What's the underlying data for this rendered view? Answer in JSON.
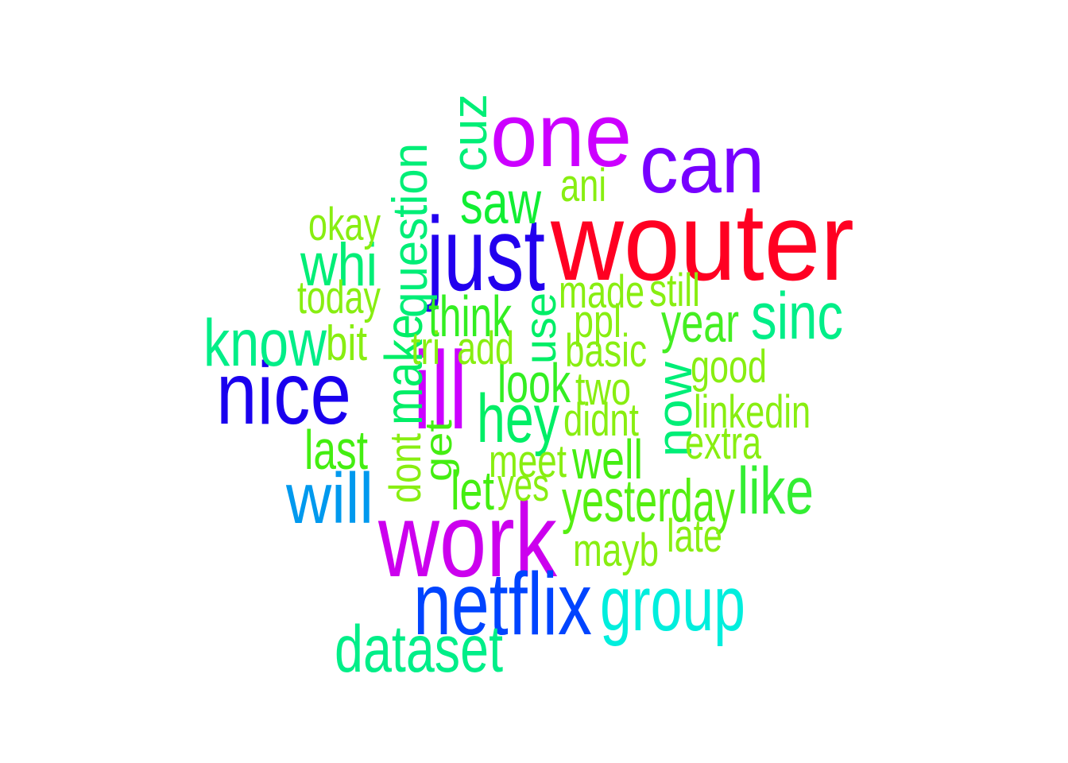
{
  "words": [
    {
      "text": "wouter",
      "color": "#ff0022"
    },
    {
      "text": "one",
      "color": "#cc00ff"
    },
    {
      "text": "can",
      "color": "#7700ff"
    },
    {
      "text": "just",
      "color": "#2200ee"
    },
    {
      "text": "nice",
      "color": "#1a00ee"
    },
    {
      "text": "ill",
      "color": "#cc00ff"
    },
    {
      "text": "work",
      "color": "#cc00ee"
    },
    {
      "text": "netflix",
      "color": "#0044ff"
    },
    {
      "text": "will",
      "color": "#0099ee"
    },
    {
      "text": "group",
      "color": "#00eedd"
    },
    {
      "text": "dataset",
      "color": "#00ee88"
    },
    {
      "text": "sinc",
      "color": "#00ee88"
    },
    {
      "text": "know",
      "color": "#00ee88"
    },
    {
      "text": "whi",
      "color": "#00ee77"
    },
    {
      "text": "question",
      "color": "#00ee77"
    },
    {
      "text": "cuz",
      "color": "#00ee77"
    },
    {
      "text": "make",
      "color": "#00ee66"
    },
    {
      "text": "now",
      "color": "#00ee77"
    },
    {
      "text": "hey",
      "color": "#00ee66"
    },
    {
      "text": "use",
      "color": "#00ee66"
    },
    {
      "text": "like",
      "color": "#33ee33"
    },
    {
      "text": "saw",
      "color": "#11ee33"
    },
    {
      "text": "think",
      "color": "#33ee22"
    },
    {
      "text": "look",
      "color": "#33ee22"
    },
    {
      "text": "year",
      "color": "#44ee22"
    },
    {
      "text": "last",
      "color": "#44ee11"
    },
    {
      "text": "let",
      "color": "#44ee11"
    },
    {
      "text": "well",
      "color": "#44ee11"
    },
    {
      "text": "yesterday",
      "color": "#55ee11"
    },
    {
      "text": "get",
      "color": "#44ee11"
    },
    {
      "text": "dont",
      "color": "#88ee11"
    },
    {
      "text": "bit",
      "color": "#88ee11"
    },
    {
      "text": "okay",
      "color": "#88ee11"
    },
    {
      "text": "today",
      "color": "#88ee11"
    },
    {
      "text": "ani",
      "color": "#88ee11"
    },
    {
      "text": "made",
      "color": "#88ee11"
    },
    {
      "text": "still",
      "color": "#88ee11"
    },
    {
      "text": "ppl",
      "color": "#88ee11"
    },
    {
      "text": "tri",
      "color": "#88ee11"
    },
    {
      "text": "add",
      "color": "#88ee11"
    },
    {
      "text": "basic",
      "color": "#88ee11"
    },
    {
      "text": "good",
      "color": "#88ee11"
    },
    {
      "text": "two",
      "color": "#88ee11"
    },
    {
      "text": "didnt",
      "color": "#88ee11"
    },
    {
      "text": "linkedin",
      "color": "#88ee11"
    },
    {
      "text": "extra",
      "color": "#88ee11"
    },
    {
      "text": "meet",
      "color": "#88ee11"
    },
    {
      "text": "yes",
      "color": "#88ee11"
    },
    {
      "text": "late",
      "color": "#88ee11"
    },
    {
      "text": "mayb",
      "color": "#88ee11"
    }
  ]
}
